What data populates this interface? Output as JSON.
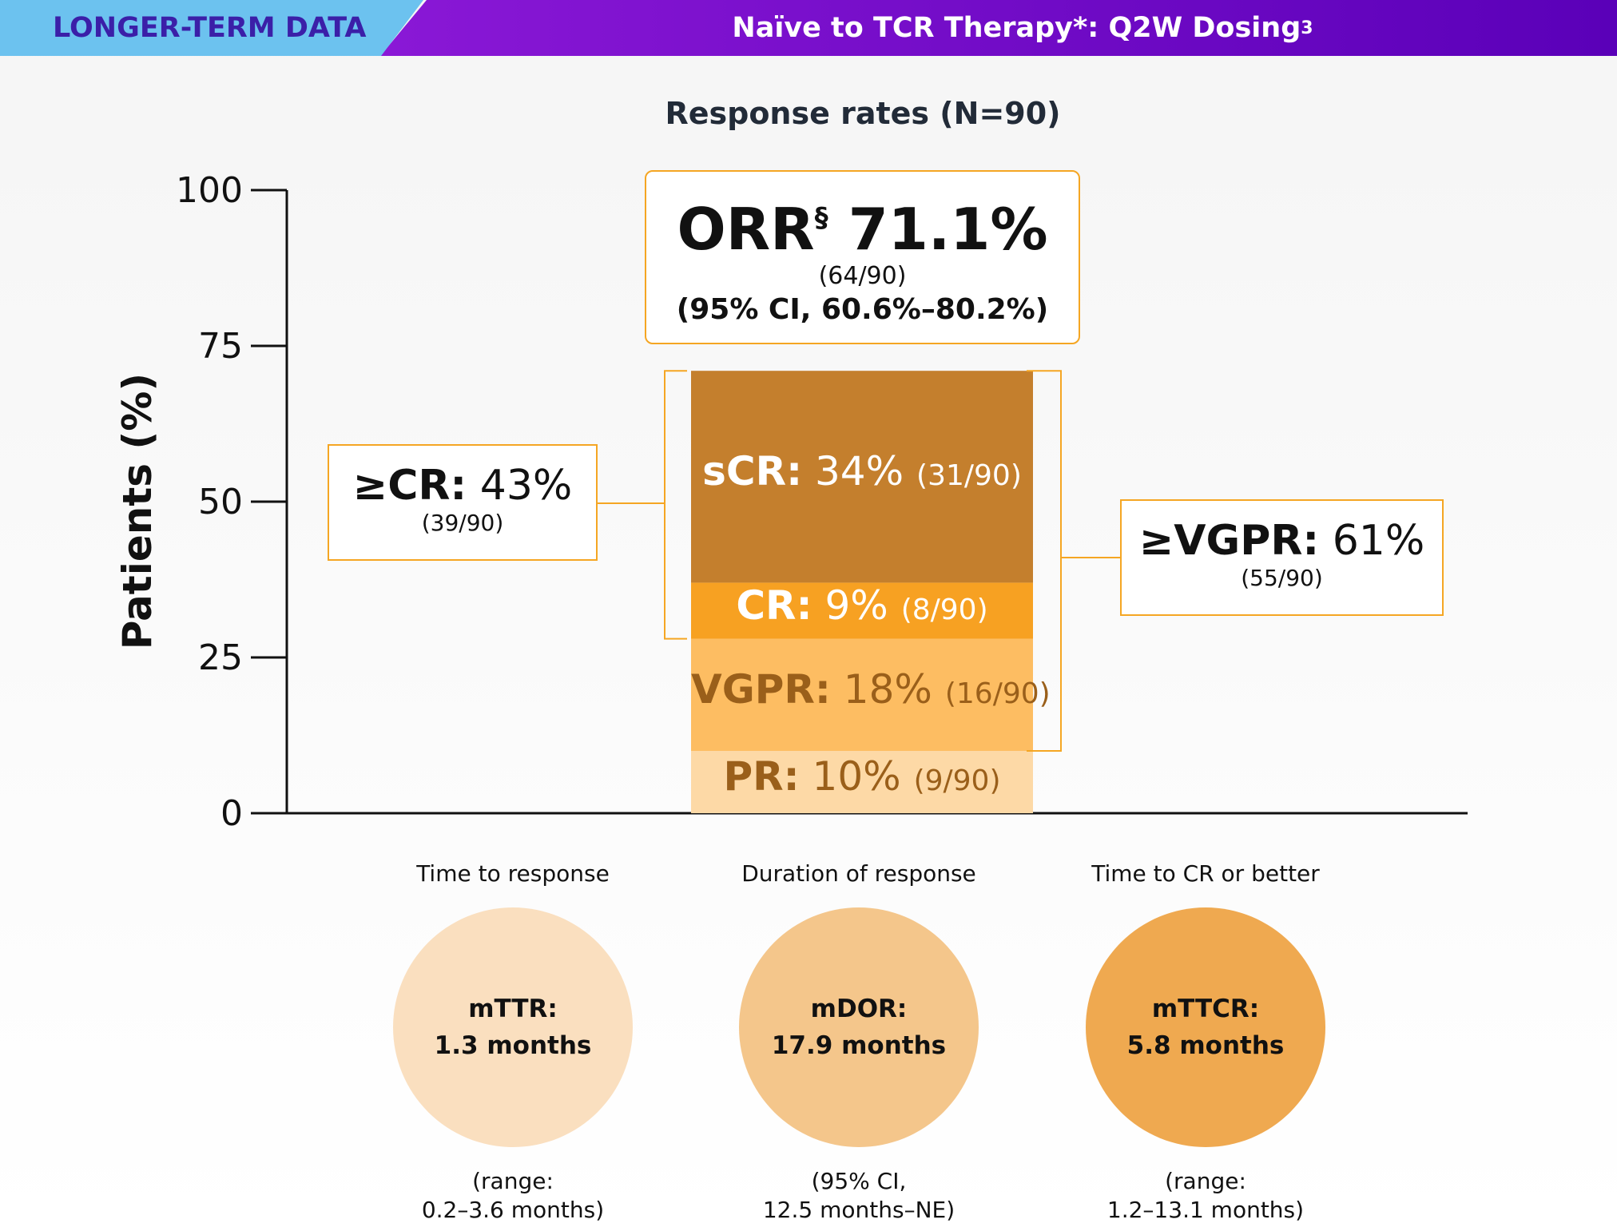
{
  "header": {
    "tag": "LONGER-TERM DATA",
    "title": "Naïve to TCR Therapy*: Q2W Dosing",
    "title_sup": "3"
  },
  "chart_data": {
    "type": "bar",
    "title": "Response rates (N=90)",
    "xlabel": "",
    "ylabel": "Patients (%)",
    "ylim": [
      0,
      100
    ],
    "yticks": [
      0,
      25,
      50,
      75,
      100
    ],
    "stacked": true,
    "categories": [
      ""
    ],
    "series": [
      {
        "name": "PR",
        "value": 10,
        "label_value": "10%",
        "fraction": "(9/90)",
        "color": "#fdd9a6"
      },
      {
        "name": "VGPR",
        "value": 18,
        "label_value": "18%",
        "fraction": "(16/90)",
        "color": "#fdbd62"
      },
      {
        "name": "CR",
        "value": 9,
        "label_value": "9%",
        "fraction": "(8/90)",
        "color": "#f7a122"
      },
      {
        "name": "sCR",
        "value": 34,
        "label_value": "34%",
        "fraction": "(31/90)",
        "color": "#c47f2d"
      }
    ],
    "orr": {
      "label": "ORR",
      "sup": "§",
      "value": "71.1%",
      "fraction": "(64/90)",
      "ci": "(95% CI, 60.6%–80.2%)"
    },
    "ge_cr": {
      "label": "≥CR:",
      "value": "43%",
      "fraction": "(39/90)"
    },
    "ge_vgpr": {
      "label": "≥VGPR:",
      "value": "61%",
      "fraction": "(55/90)"
    },
    "colors": {
      "accent": "#f5a623",
      "text_dark": "#9a5f1a"
    }
  },
  "metrics": [
    {
      "title": "Time to response",
      "name": "mTTR:",
      "value": "1.3 months",
      "note1": "(range:",
      "note2": "0.2–3.6 months)",
      "color": "#fadfbf"
    },
    {
      "title": "Duration of response",
      "name": "mDOR:",
      "value": "17.9 months",
      "note1": "(95% CI,",
      "note2": "12.5 months–NE)",
      "color": "#f4c68b"
    },
    {
      "title": "Time to CR or better",
      "name": "mTTCR:",
      "value": "5.8 months",
      "note1": "(range:",
      "note2": "1.2–13.1 months)",
      "color": "#efa950"
    }
  ]
}
